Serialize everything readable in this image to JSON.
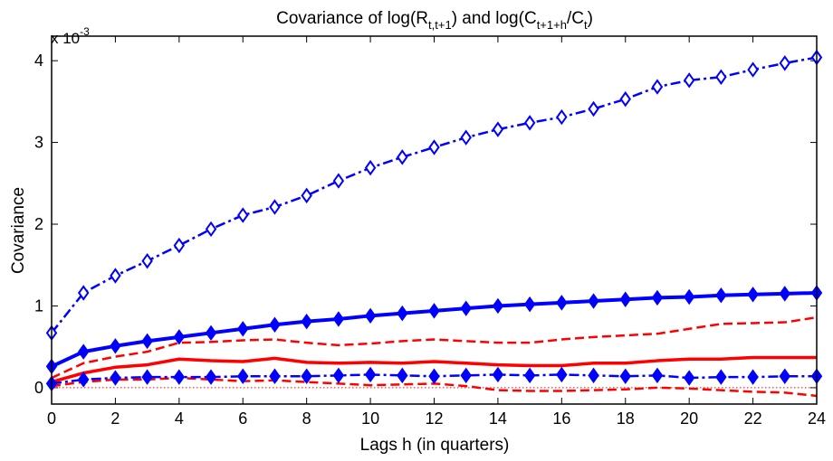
{
  "chart_data": {
    "type": "line",
    "title": {
      "prefix": "Covariance of log(R",
      "sub1": "t,t+1",
      "mid": ") and log(C",
      "sub2": "t+1+h",
      "mid2": "/C",
      "sub3": "t",
      "suffix": ")"
    },
    "xlabel": "Lags h (in quarters)",
    "ylabel": "Covariance",
    "y_multiplier": {
      "base": "x 10",
      "exponent": "-3"
    },
    "xlim": [
      0,
      24
    ],
    "ylim": [
      -0.2,
      4.3
    ],
    "xticks": [
      0,
      2,
      4,
      6,
      8,
      10,
      12,
      14,
      16,
      18,
      20,
      22,
      24
    ],
    "yticks": [
      0,
      1,
      2,
      3,
      4
    ],
    "grid": false,
    "x": [
      0,
      1,
      2,
      3,
      4,
      5,
      6,
      7,
      8,
      9,
      10,
      11,
      12,
      13,
      14,
      15,
      16,
      17,
      18,
      19,
      20,
      21,
      22,
      23,
      24
    ],
    "series": [
      {
        "color": "#0000ff",
        "style": "dash-dot",
        "marker": "diamond-open",
        "width": 2.5,
        "values": [
          0.67,
          1.16,
          1.37,
          1.55,
          1.74,
          1.94,
          2.11,
          2.21,
          2.35,
          2.53,
          2.69,
          2.82,
          2.94,
          3.06,
          3.16,
          3.24,
          3.31,
          3.41,
          3.53,
          3.68,
          3.76,
          3.8,
          3.89,
          3.97,
          4.04
        ]
      },
      {
        "color": "#0000ff",
        "style": "solid",
        "marker": "diamond-filled",
        "width": 4,
        "values": [
          0.26,
          0.44,
          0.51,
          0.57,
          0.62,
          0.67,
          0.72,
          0.77,
          0.81,
          0.84,
          0.88,
          0.91,
          0.94,
          0.97,
          1.0,
          1.02,
          1.04,
          1.06,
          1.08,
          1.1,
          1.11,
          1.13,
          1.14,
          1.15,
          1.16
        ]
      },
      {
        "color": "#0000ff",
        "style": "dash-dot",
        "marker": "diamond-filled",
        "width": 2.5,
        "values": [
          0.05,
          0.1,
          0.12,
          0.13,
          0.13,
          0.13,
          0.14,
          0.14,
          0.14,
          0.15,
          0.16,
          0.15,
          0.14,
          0.15,
          0.16,
          0.15,
          0.16,
          0.15,
          0.14,
          0.15,
          0.12,
          0.13,
          0.13,
          0.14,
          0.14
        ]
      },
      {
        "color": "#ff0000",
        "style": "dashed",
        "marker": "none",
        "width": 2.5,
        "values": [
          0.12,
          0.3,
          0.38,
          0.44,
          0.55,
          0.56,
          0.58,
          0.59,
          0.55,
          0.52,
          0.54,
          0.57,
          0.59,
          0.57,
          0.55,
          0.55,
          0.59,
          0.62,
          0.64,
          0.66,
          0.72,
          0.78,
          0.79,
          0.8,
          0.86
        ]
      },
      {
        "color": "#ff0000",
        "style": "solid",
        "marker": "none",
        "width": 3.5,
        "values": [
          0.07,
          0.18,
          0.25,
          0.28,
          0.35,
          0.33,
          0.32,
          0.36,
          0.31,
          0.3,
          0.31,
          0.3,
          0.32,
          0.3,
          0.28,
          0.27,
          0.27,
          0.3,
          0.3,
          0.33,
          0.35,
          0.35,
          0.37,
          0.37,
          0.37
        ]
      },
      {
        "color": "#ff0000",
        "style": "dashed",
        "marker": "none",
        "width": 2.5,
        "values": [
          0.02,
          0.07,
          0.1,
          0.1,
          0.12,
          0.1,
          0.08,
          0.09,
          0.07,
          0.05,
          0.03,
          0.04,
          0.05,
          0.02,
          -0.03,
          -0.04,
          -0.04,
          -0.03,
          -0.02,
          0.0,
          -0.01,
          -0.03,
          -0.05,
          -0.06,
          -0.1
        ]
      },
      {
        "color": "#ff0000",
        "style": "dotted",
        "marker": "none",
        "width": 1,
        "values": [
          0,
          0,
          0,
          0,
          0,
          0,
          0,
          0,
          0,
          0,
          0,
          0,
          0,
          0,
          0,
          0,
          0,
          0,
          0,
          0,
          0,
          0,
          0,
          0,
          0
        ]
      }
    ]
  }
}
